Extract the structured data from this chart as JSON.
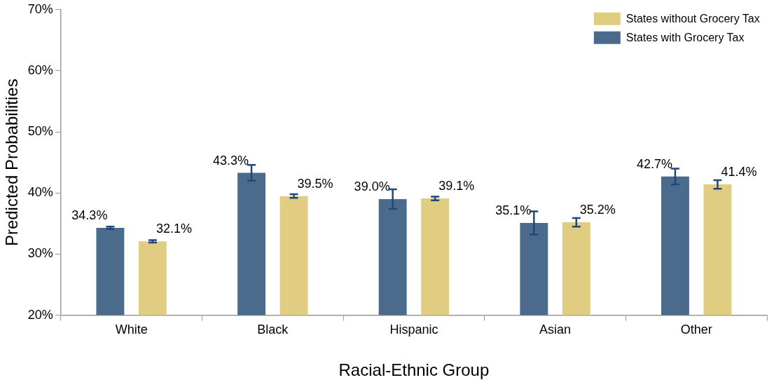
{
  "chart_data": {
    "type": "bar",
    "xlabel": "Racial-Ethnic Group",
    "ylabel": "Predicted Probabilities",
    "categories": [
      "White",
      "Black",
      "Hispanic",
      "Asian",
      "Other"
    ],
    "series": [
      {
        "name": "States with Grocery Tax",
        "color": "#4a6b8c",
        "values": [
          34.3,
          43.3,
          39.0,
          35.1,
          42.7
        ],
        "errors": [
          0.2,
          1.3,
          1.6,
          1.9,
          1.3
        ],
        "value_labels": [
          "34.3%",
          "43.3%",
          "39.0%",
          "35.1%",
          "42.7%"
        ]
      },
      {
        "name": "States without Grocery Tax",
        "color": "#e0cd82",
        "values": [
          32.1,
          39.5,
          39.1,
          35.2,
          41.4
        ],
        "errors": [
          0.2,
          0.3,
          0.3,
          0.7,
          0.7
        ],
        "value_labels": [
          "32.1%",
          "39.5%",
          "39.1%",
          "35.2%",
          "41.4%"
        ]
      }
    ],
    "ylim": [
      20,
      70
    ],
    "yticks": [
      {
        "value": 20,
        "label": "20%"
      },
      {
        "value": 30,
        "label": "30%"
      },
      {
        "value": 40,
        "label": "40%"
      },
      {
        "value": 50,
        "label": "50%"
      },
      {
        "value": 60,
        "label": "60%"
      },
      {
        "value": 70,
        "label": "70%"
      }
    ],
    "grid": false,
    "legend": "top right"
  }
}
